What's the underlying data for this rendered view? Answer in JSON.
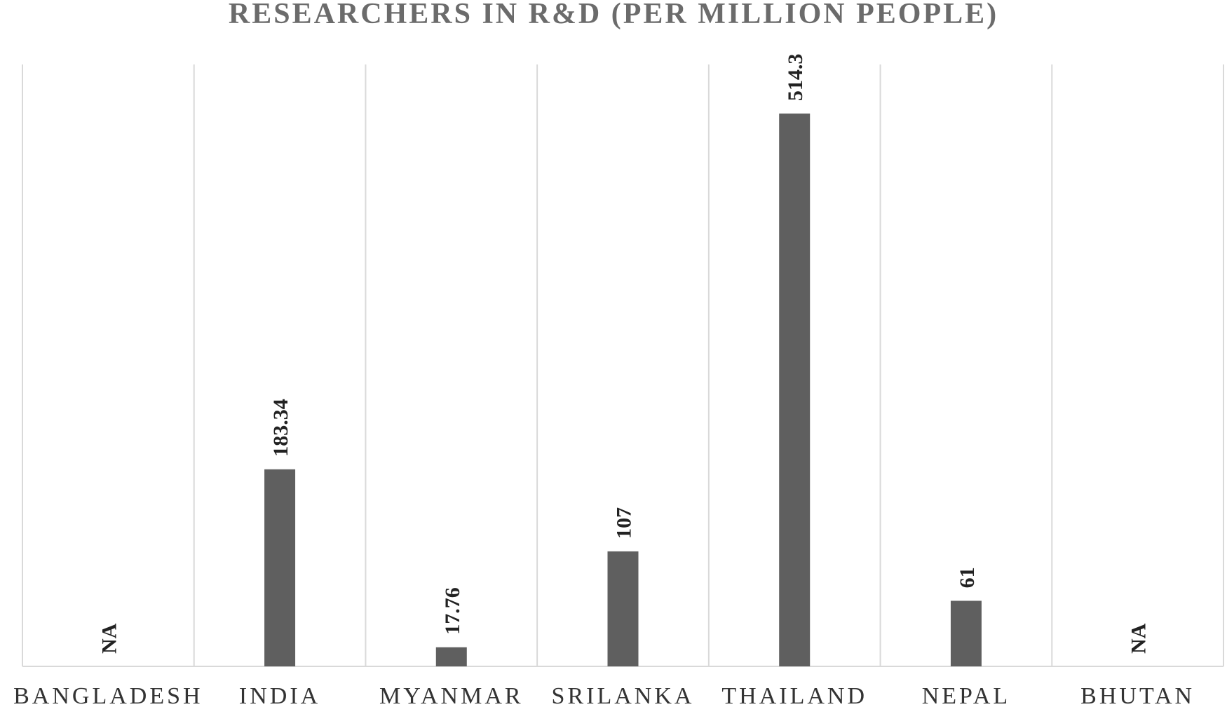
{
  "chart_data": {
    "type": "bar",
    "title": "RESEARCHERS IN R&D (PER MILLION PEOPLE)",
    "categories": [
      "BANGLADESH",
      "INDIA",
      "MYANMAR",
      "SRILANKA",
      "THAILAND",
      "NEPAL",
      "BHUTAN"
    ],
    "values": [
      null,
      183.34,
      17.76,
      107,
      514.3,
      61,
      null
    ],
    "data_labels": [
      "NA",
      "183.34",
      "17.76",
      "107",
      "514.3",
      "61",
      "NA"
    ],
    "xlabel": "",
    "ylabel": "",
    "ylim": [
      0,
      560
    ],
    "grid": "vertical",
    "legend": "none",
    "bar_color": "#5f5f5f",
    "grid_color": "#d9d9d9"
  }
}
